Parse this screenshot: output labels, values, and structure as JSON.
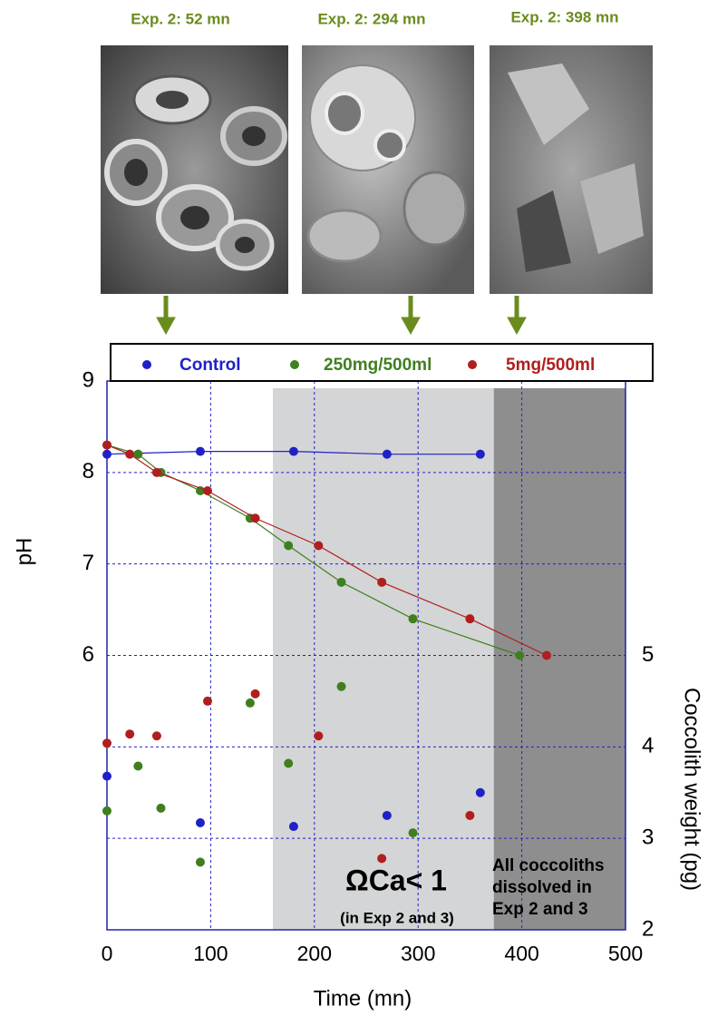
{
  "chart_data": {
    "type": "line",
    "panels": [
      {
        "label": "Exp. 2: 52 mn"
      },
      {
        "label": "Exp. 2: 294 mn"
      },
      {
        "label": "Exp. 2: 398 mn"
      }
    ],
    "xlabel": "Time (mn)",
    "ylabel": "pH",
    "y2label": "Coccolith weight (pg)",
    "xlim": [
      0,
      500
    ],
    "xticks": [
      0,
      100,
      200,
      300,
      400,
      500
    ],
    "ylim": [
      3,
      9
    ],
    "yticks": [
      6,
      7,
      8,
      9
    ],
    "y2lim": [
      2,
      8
    ],
    "y2ticks": [
      2,
      3,
      4,
      5
    ],
    "grid": true,
    "shaded_regions": [
      {
        "xlim": [
          160,
          373
        ],
        "color": "#d4d5d6"
      },
      {
        "xlim": [
          373,
          500
        ],
        "color": "#8e8e8e"
      }
    ],
    "annotations": {
      "omega": "ΩCa< 1",
      "omega_note": "(in Exp 2 and 3)",
      "dissolved": [
        "All coccoliths",
        "dissolved in",
        "Exp 2 and 3"
      ]
    },
    "series": [
      {
        "name": "Control",
        "color": "#2020c8",
        "mode": "line",
        "x": [
          0,
          90,
          180,
          270,
          360
        ],
        "values": [
          8.2,
          8.23,
          8.23,
          8.2,
          8.2
        ]
      },
      {
        "name": "250mg/500ml",
        "color": "#3f7f1f",
        "mode": "line",
        "x": [
          0,
          30,
          52,
          90,
          138,
          175,
          226,
          295,
          398
        ],
        "values": [
          8.3,
          8.2,
          8.0,
          7.8,
          7.5,
          7.2,
          6.8,
          6.4,
          6.0
        ]
      },
      {
        "name": "5mg/500ml",
        "color": "#b01e1e",
        "mode": "line",
        "x": [
          0,
          22,
          48,
          97,
          143,
          204,
          265,
          350,
          424
        ],
        "values": [
          8.3,
          8.2,
          8.0,
          7.8,
          7.5,
          7.2,
          6.8,
          6.4,
          6.0
        ]
      },
      {
        "color": "#2020c8",
        "mode": "points",
        "axis": "y2",
        "x": [
          0,
          90,
          180,
          270,
          360
        ],
        "values": [
          3.68,
          3.17,
          3.13,
          3.25,
          3.5
        ]
      },
      {
        "color": "#3f7f1f",
        "mode": "points",
        "axis": "y2",
        "x": [
          0,
          30,
          52,
          90,
          138,
          175,
          226,
          295
        ],
        "values": [
          3.3,
          3.79,
          3.33,
          2.74,
          4.48,
          3.82,
          4.66,
          3.06
        ]
      },
      {
        "color": "#b01e1e",
        "mode": "points",
        "axis": "y2",
        "x": [
          0,
          22,
          48,
          97,
          143,
          204,
          265,
          350
        ],
        "values": [
          4.04,
          4.14,
          4.12,
          4.5,
          4.58,
          4.12,
          2.78,
          3.25
        ]
      }
    ]
  }
}
